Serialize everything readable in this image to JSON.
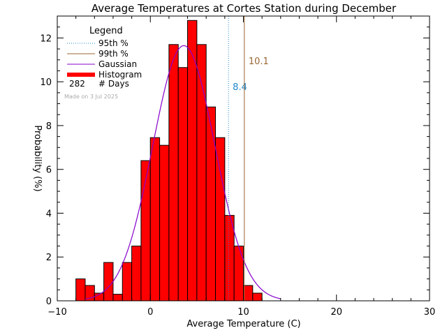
{
  "chart_data": {
    "type": "bar",
    "title": "Average Temperatures at Cortes Station during December",
    "xlabel": "Average Temperature (C)",
    "ylabel": "Probability  (%)",
    "xlim": [
      -10,
      30
    ],
    "ylim": [
      0,
      13
    ],
    "xticks": [
      -10,
      0,
      10,
      20,
      30
    ],
    "yticks": [
      0,
      2,
      4,
      6,
      8,
      10,
      12
    ],
    "bin_width": 1,
    "bin_starts": [
      -8,
      -7,
      -6,
      -5,
      -4,
      -3,
      -2,
      -1,
      0,
      1,
      2,
      3,
      4,
      5,
      6,
      7,
      8,
      9,
      10,
      11
    ],
    "values": [
      1.0,
      0.7,
      0.35,
      1.75,
      0.3,
      1.75,
      2.5,
      6.4,
      7.45,
      7.1,
      11.7,
      10.65,
      12.8,
      11.7,
      8.85,
      7.45,
      3.9,
      2.5,
      0.7,
      0.35
    ],
    "gaussian": {
      "name": "Gaussian",
      "mean": 3.6,
      "sigma": 3.35,
      "peak": 11.65
    },
    "percentiles": [
      {
        "name": "95th %",
        "value": 8.4,
        "label": "8.4",
        "color": "#2288cc",
        "style": "dotted"
      },
      {
        "name": "99th %",
        "value": 10.1,
        "label": "10.1",
        "color": "#996633",
        "style": "solid"
      }
    ],
    "legend": {
      "title": "Legend",
      "placement": "top-left",
      "entries": [
        {
          "label": "95th %",
          "color": "#2288cc",
          "style": "dotted"
        },
        {
          "label": "99th %",
          "color": "#996633",
          "style": "solid"
        },
        {
          "label": "Gaussian",
          "color": "#8800cc",
          "style": "solid"
        },
        {
          "label": "Histogram",
          "color": "#ff0000",
          "style": "thick"
        }
      ],
      "days_count": "282",
      "days_label": "# Days"
    },
    "watermark": "Made on 3 Jul 2025",
    "colors": {
      "bars": "#ff0000",
      "bar_edge": "#000000",
      "gaussian": "#8800cc"
    }
  }
}
